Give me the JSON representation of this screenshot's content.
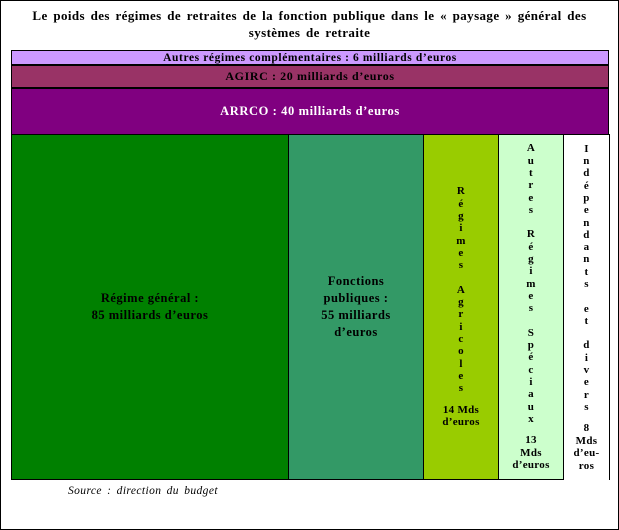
{
  "title": "Le poids des régimes de retraites de la fonction publique dans le « paysage » général des\nsystèmes de retraite",
  "bars": [
    {
      "name": "Autres régimes complémentaires",
      "label": "Autres régimes complémentaires : 6 milliards d’euros",
      "value_mds": 6,
      "color": "#cc99ff",
      "text_color": "#000000"
    },
    {
      "name": "AGIRC",
      "label": "AGIRC : 20 milliards d’euros",
      "value_mds": 20,
      "color": "#993366",
      "text_color": "#000000"
    },
    {
      "name": "ARRCO",
      "label": "ARRCO : 40 milliards d’euros",
      "value_mds": 40,
      "color": "#800080",
      "text_color": "#ffffff"
    }
  ],
  "columns": [
    {
      "name": "Régime général",
      "label": "Régime général :\n85 milliards d’euros",
      "value_mds": 85,
      "color": "#008000"
    },
    {
      "name": "Fonctions publiques",
      "label": "Fonctions\npubliques :\n55 milliards\nd’euros",
      "value_mds": 55,
      "color": "#339966"
    },
    {
      "name": "Régimes Agricoles",
      "vertical_label": "R\né\ng\ni\nm\ne\ns\n\nA\ng\nr\ni\nc\no\nl\ne\ns",
      "amount": "14 Mds\nd’euros",
      "value_mds": 14,
      "color": "#99cc00"
    },
    {
      "name": "Autres Régimes Spéciaux",
      "vertical_label": "A\nu\nt\nr\ne\ns\n\nR\né\ng\ni\nm\ne\ns\n\nS\np\né\nc\ni\na\nu\nx",
      "amount": "13\nMds\nd’euros",
      "value_mds": 13,
      "color": "#ccffcc"
    },
    {
      "name": "Indépendants et divers",
      "vertical_label": "I\nn\nd\né\np\ne\nn\nd\na\nn\nt\ns\n\ne\nt\n\nd\ni\nv\ne\nr\ns",
      "amount": "8\nMds\nd’eu-\nros",
      "value_mds": 8,
      "color": "#ffffff"
    }
  ],
  "source": "Source : direction du budget",
  "chart_data": {
    "type": "bar",
    "title": "Le poids des régimes de retraites de la fonction publique dans le « paysage » général des systèmes de retraite",
    "unit": "milliards d'euros",
    "categories": [
      "Autres régimes complémentaires",
      "AGIRC",
      "ARRCO",
      "Régime général",
      "Fonctions publiques",
      "Régimes Agricoles",
      "Autres Régimes Spéciaux",
      "Indépendants et divers"
    ],
    "values": [
      6,
      20,
      40,
      85,
      55,
      14,
      13,
      8
    ],
    "legend": "none",
    "source": "Source : direction du budget"
  }
}
